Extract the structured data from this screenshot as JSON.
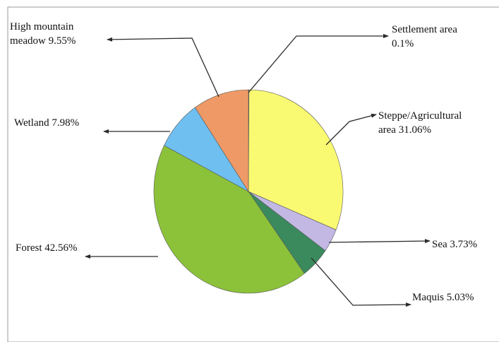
{
  "chart_data": {
    "type": "pie",
    "slices": [
      {
        "name": "Settlement area",
        "value": 0.1,
        "label_lines": [
          "Settlement area",
          "0.1%"
        ],
        "color": "#f4f0a0"
      },
      {
        "name": "Steppe/Agricultural area",
        "value": 31.06,
        "label_lines": [
          "Steppe/Agricultural",
          "area 31.06%"
        ],
        "color": "#fafa72"
      },
      {
        "name": "Sea",
        "value": 3.73,
        "label_lines": [
          "Sea 3.73%"
        ],
        "color": "#c3b8e4"
      },
      {
        "name": "Maquis",
        "value": 5.03,
        "label_lines": [
          "Maquis 5.03%"
        ],
        "color": "#3a8a5e"
      },
      {
        "name": "Forest",
        "value": 42.56,
        "label_lines": [
          "Forest 42.56%"
        ],
        "color": "#8cc23a"
      },
      {
        "name": "Wetland",
        "value": 7.98,
        "label_lines": [
          "Wetland 7.98%"
        ],
        "color": "#6fbff0"
      },
      {
        "name": "High mountain meadow",
        "value": 9.55,
        "label_lines": [
          "High mountain",
          "meadow 9.55%"
        ],
        "color": "#ef9a66"
      }
    ]
  }
}
